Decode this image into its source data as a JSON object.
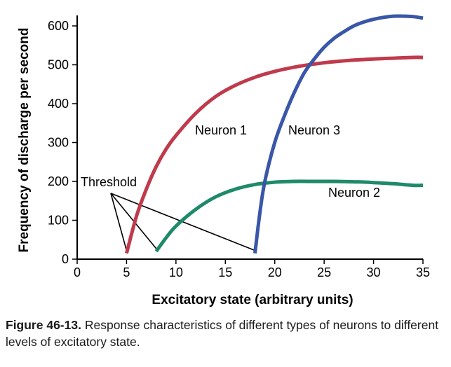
{
  "chart_data": {
    "type": "line",
    "xlabel": "Excitatory state (arbitrary units)",
    "ylabel": "Frequency of discharge per second",
    "xlim": [
      0,
      35
    ],
    "ylim": [
      0,
      600
    ],
    "x_ticks": [
      "0",
      "5",
      "10",
      "15",
      "20",
      "25",
      "30",
      "35"
    ],
    "y_ticks": [
      "0",
      "100",
      "200",
      "300",
      "400",
      "500",
      "600"
    ],
    "grid": false,
    "series": [
      {
        "name": "Neuron 1",
        "color": "#c03a4c",
        "x": [
          5,
          6,
          7,
          8,
          9,
          10,
          12,
          14,
          16,
          18,
          20,
          22,
          24,
          26,
          28,
          30,
          32,
          34,
          35
        ],
        "y": [
          15,
          110,
          180,
          238,
          283,
          318,
          375,
          418,
          447,
          468,
          483,
          494,
          502,
          508,
          512,
          515,
          517,
          519,
          519
        ]
      },
      {
        "name": "Neuron 2",
        "color": "#1f8a6a",
        "x": [
          8,
          9,
          10,
          12,
          14,
          16,
          18,
          20,
          22,
          24,
          26,
          28,
          30,
          32,
          34,
          35
        ],
        "y": [
          20,
          55,
          85,
          128,
          160,
          180,
          192,
          198,
          200,
          200,
          200,
          199,
          197,
          194,
          190,
          190
        ]
      },
      {
        "name": "Neuron 3",
        "color": "#3a56a8",
        "x": [
          18,
          18.5,
          19,
          20,
          21,
          22,
          23,
          24,
          25,
          26,
          27,
          28,
          29,
          30,
          31,
          32,
          33,
          34,
          35
        ],
        "y": [
          15,
          120,
          200,
          300,
          370,
          430,
          480,
          515,
          545,
          568,
          585,
          600,
          610,
          617,
          622,
          625,
          625,
          624,
          620
        ]
      }
    ],
    "annotations": {
      "threshold_label": "Threshold",
      "threshold_points": [
        [
          5,
          15
        ],
        [
          8,
          20
        ],
        [
          18,
          15
        ]
      ]
    }
  },
  "caption": {
    "figure_label": "Figure 46-13.",
    "text": "Response characteristics of different types of neurons to different levels of excitatory state."
  }
}
